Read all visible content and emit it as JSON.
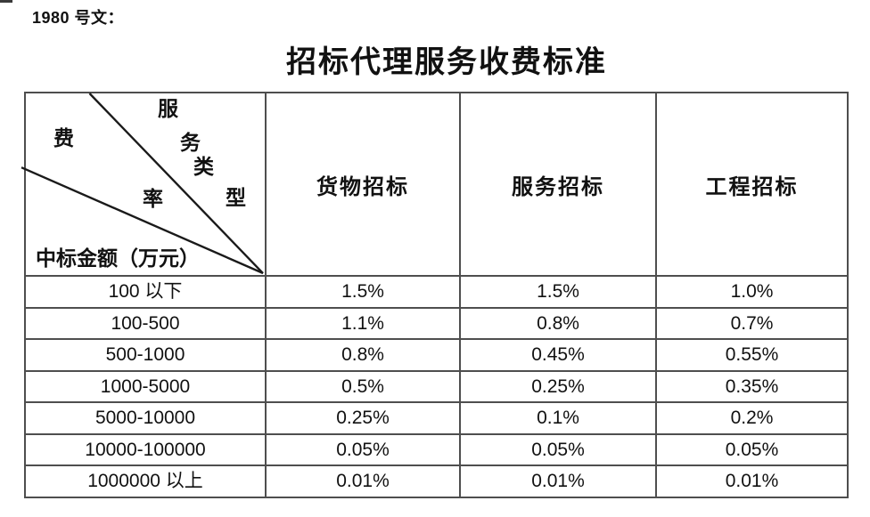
{
  "page": {
    "doc_number_label": "1980 号文：",
    "title": "招标代理服务收费标准"
  },
  "table": {
    "corner": {
      "service_type_chars": [
        "服",
        "务",
        "类",
        "型"
      ],
      "fee_rate_chars": [
        "费",
        "率"
      ],
      "amount_axis_label": "中标金额（万元）"
    },
    "columns": [
      "货物招标",
      "服务招标",
      "工程招标"
    ],
    "rows": [
      {
        "range": "100 以下",
        "values": [
          "1.5%",
          "1.5%",
          "1.0%"
        ]
      },
      {
        "range": "100-500",
        "values": [
          "1.1%",
          "0.8%",
          "0.7%"
        ]
      },
      {
        "range": "500-1000",
        "values": [
          "0.8%",
          "0.45%",
          "0.55%"
        ]
      },
      {
        "range": "1000-5000",
        "values": [
          "0.5%",
          "0.25%",
          "0.35%"
        ]
      },
      {
        "range": "5000-10000",
        "values": [
          "0.25%",
          "0.1%",
          "0.2%"
        ]
      },
      {
        "range": "10000-100000",
        "values": [
          "0.05%",
          "0.05%",
          "0.05%"
        ]
      },
      {
        "range": "1000000 以上",
        "values": [
          "0.01%",
          "0.01%",
          "0.01%"
        ]
      }
    ]
  },
  "colors": {
    "text": "#111111",
    "border": "#4e4e4e",
    "diagonal_line": "#1a1a1a",
    "background": "#ffffff"
  }
}
